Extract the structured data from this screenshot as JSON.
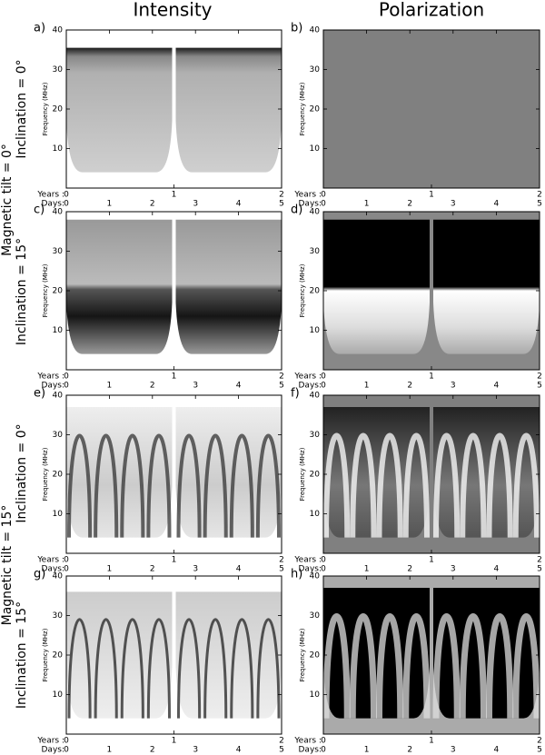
{
  "column_titles": [
    "Intensity",
    "Polarization"
  ],
  "row_labels": [
    "Inclination = 0°",
    "Inclination = 15°",
    "Inclination = 0°",
    "Inclination = 15°"
  ],
  "group_labels": [
    "Magnetic tilt = 0°",
    "Magnetic tilt = 15°"
  ],
  "chart_data": [
    {
      "type": "heatmap",
      "label": "a)",
      "ylabel": "Frequency (MHz)",
      "ylim": [
        0,
        40
      ],
      "yticks": [
        10,
        20,
        30,
        40
      ],
      "xlabel": "Years :",
      "xlim": [
        0,
        2
      ],
      "xticks": [
        0,
        1,
        2
      ],
      "x2label": "Days:",
      "x2lim": [
        0,
        5
      ],
      "x2ticks": [
        0,
        1,
        2,
        3,
        4,
        5
      ]
    },
    {
      "type": "heatmap",
      "label": "b)",
      "ylabel": "Frequency (MHz)",
      "ylim": [
        0,
        40
      ],
      "yticks": [
        10,
        20,
        30,
        40
      ],
      "xlabel": "Years :",
      "xlim": [
        0,
        2
      ],
      "xticks": [
        0,
        1,
        2
      ],
      "x2label": "Days:",
      "x2lim": [
        0,
        5
      ],
      "x2ticks": [
        0,
        1,
        2,
        3,
        4,
        5
      ]
    },
    {
      "type": "heatmap",
      "label": "c)",
      "ylabel": "Frequency (MHz)",
      "ylim": [
        0,
        40
      ],
      "yticks": [
        10,
        20,
        30,
        40
      ],
      "xlabel": "Years :",
      "xlim": [
        0,
        2
      ],
      "xticks": [
        0,
        1,
        2
      ],
      "x2label": "Days:",
      "x2lim": [
        0,
        5
      ],
      "x2ticks": [
        0,
        1,
        2,
        3,
        4,
        5
      ]
    },
    {
      "type": "heatmap",
      "label": "d)",
      "ylabel": "Frequency (MHz)",
      "ylim": [
        0,
        40
      ],
      "yticks": [
        10,
        20,
        30,
        40
      ],
      "xlabel": "Years :",
      "xlim": [
        0,
        2
      ],
      "xticks": [
        0,
        1,
        2
      ],
      "x2label": "Days:",
      "x2lim": [
        0,
        5
      ],
      "x2ticks": [
        0,
        1,
        2,
        3,
        4,
        5
      ]
    },
    {
      "type": "heatmap",
      "label": "e)",
      "ylabel": "Frequency (MHz)",
      "ylim": [
        0,
        40
      ],
      "yticks": [
        10,
        20,
        30,
        40
      ],
      "xlabel": "Years :",
      "xlim": [
        0,
        2
      ],
      "xticks": [
        0,
        1,
        2
      ],
      "x2label": "Days:",
      "x2lim": [
        0,
        5
      ],
      "x2ticks": [
        0,
        1,
        2,
        3,
        4,
        5
      ]
    },
    {
      "type": "heatmap",
      "label": "f)",
      "ylabel": "Frequency (MHz)",
      "ylim": [
        0,
        40
      ],
      "yticks": [
        10,
        20,
        30,
        40
      ],
      "xlabel": "Years :",
      "xlim": [
        0,
        2
      ],
      "xticks": [
        0,
        1,
        2
      ],
      "x2label": "Days:",
      "x2lim": [
        0,
        5
      ],
      "x2ticks": [
        0,
        1,
        2,
        3,
        4,
        5
      ]
    },
    {
      "type": "heatmap",
      "label": "g)",
      "ylabel": "Frequency (MHz)",
      "ylim": [
        0,
        40
      ],
      "yticks": [
        10,
        20,
        30,
        40
      ],
      "xlabel": "Years :",
      "xlim": [
        0,
        2
      ],
      "xticks": [
        0,
        1,
        2
      ],
      "x2label": "Days:",
      "x2lim": [
        0,
        5
      ],
      "x2ticks": [
        0,
        1,
        2,
        3,
        4,
        5
      ]
    },
    {
      "type": "heatmap",
      "label": "h)",
      "ylabel": "Frequency (MHz)",
      "ylim": [
        0,
        40
      ],
      "yticks": [
        10,
        20,
        30,
        40
      ],
      "xlabel": "Years :",
      "xlim": [
        0,
        2
      ],
      "xticks": [
        0,
        1,
        2
      ],
      "x2label": "Days:",
      "x2lim": [
        0,
        5
      ],
      "x2ticks": [
        0,
        1,
        2,
        3,
        4,
        5
      ]
    }
  ]
}
